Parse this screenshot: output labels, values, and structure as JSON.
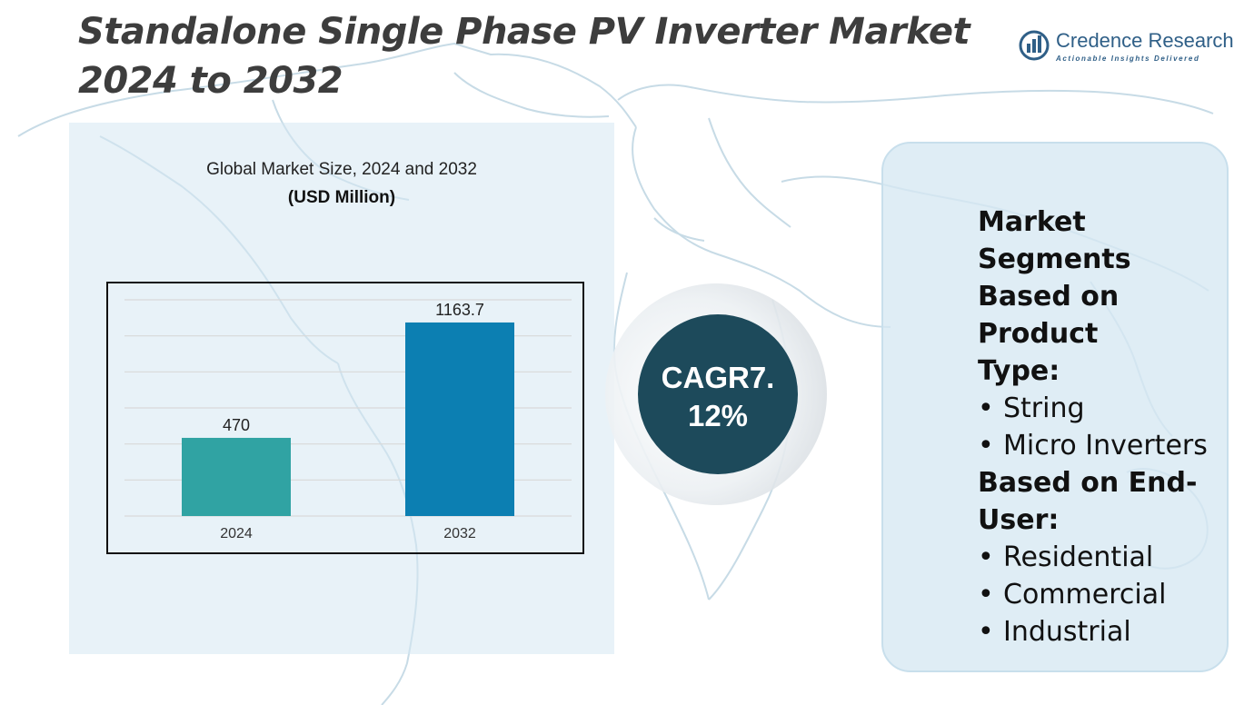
{
  "title": {
    "line1": "Standalone Single Phase PV Inverter Market",
    "line2": "2024 to 2032"
  },
  "logo": {
    "name": "Credence Research",
    "tagline": "Actionable Insights Delivered",
    "icon": "credence-logo-icon"
  },
  "chart_data": {
    "type": "bar",
    "title": "Global Market Size, 2024 and 2032",
    "units": "(USD Million)",
    "categories": [
      "2024",
      "2032"
    ],
    "values": [
      470,
      1163.7
    ],
    "value_labels": [
      "470",
      "1163.7"
    ],
    "ylim": [
      0,
      1300
    ],
    "grid": true,
    "xlabel": "",
    "ylabel": "",
    "colors": [
      "#30a3a3",
      "#0c7fb2"
    ]
  },
  "cagr": {
    "line1": "CAGR7.",
    "line2": "12%",
    "circle_color": "#1d4a5b"
  },
  "segments": {
    "product_heading_lines": [
      "Market Segments",
      "Based on Product",
      "Type:"
    ],
    "product_items": [
      "String",
      "Micro Inverters"
    ],
    "enduser_heading_lines": [
      "Based on End-",
      "User:"
    ],
    "enduser_items": [
      "Residential",
      "Commercial",
      "Industrial"
    ],
    "bullet": "•"
  }
}
